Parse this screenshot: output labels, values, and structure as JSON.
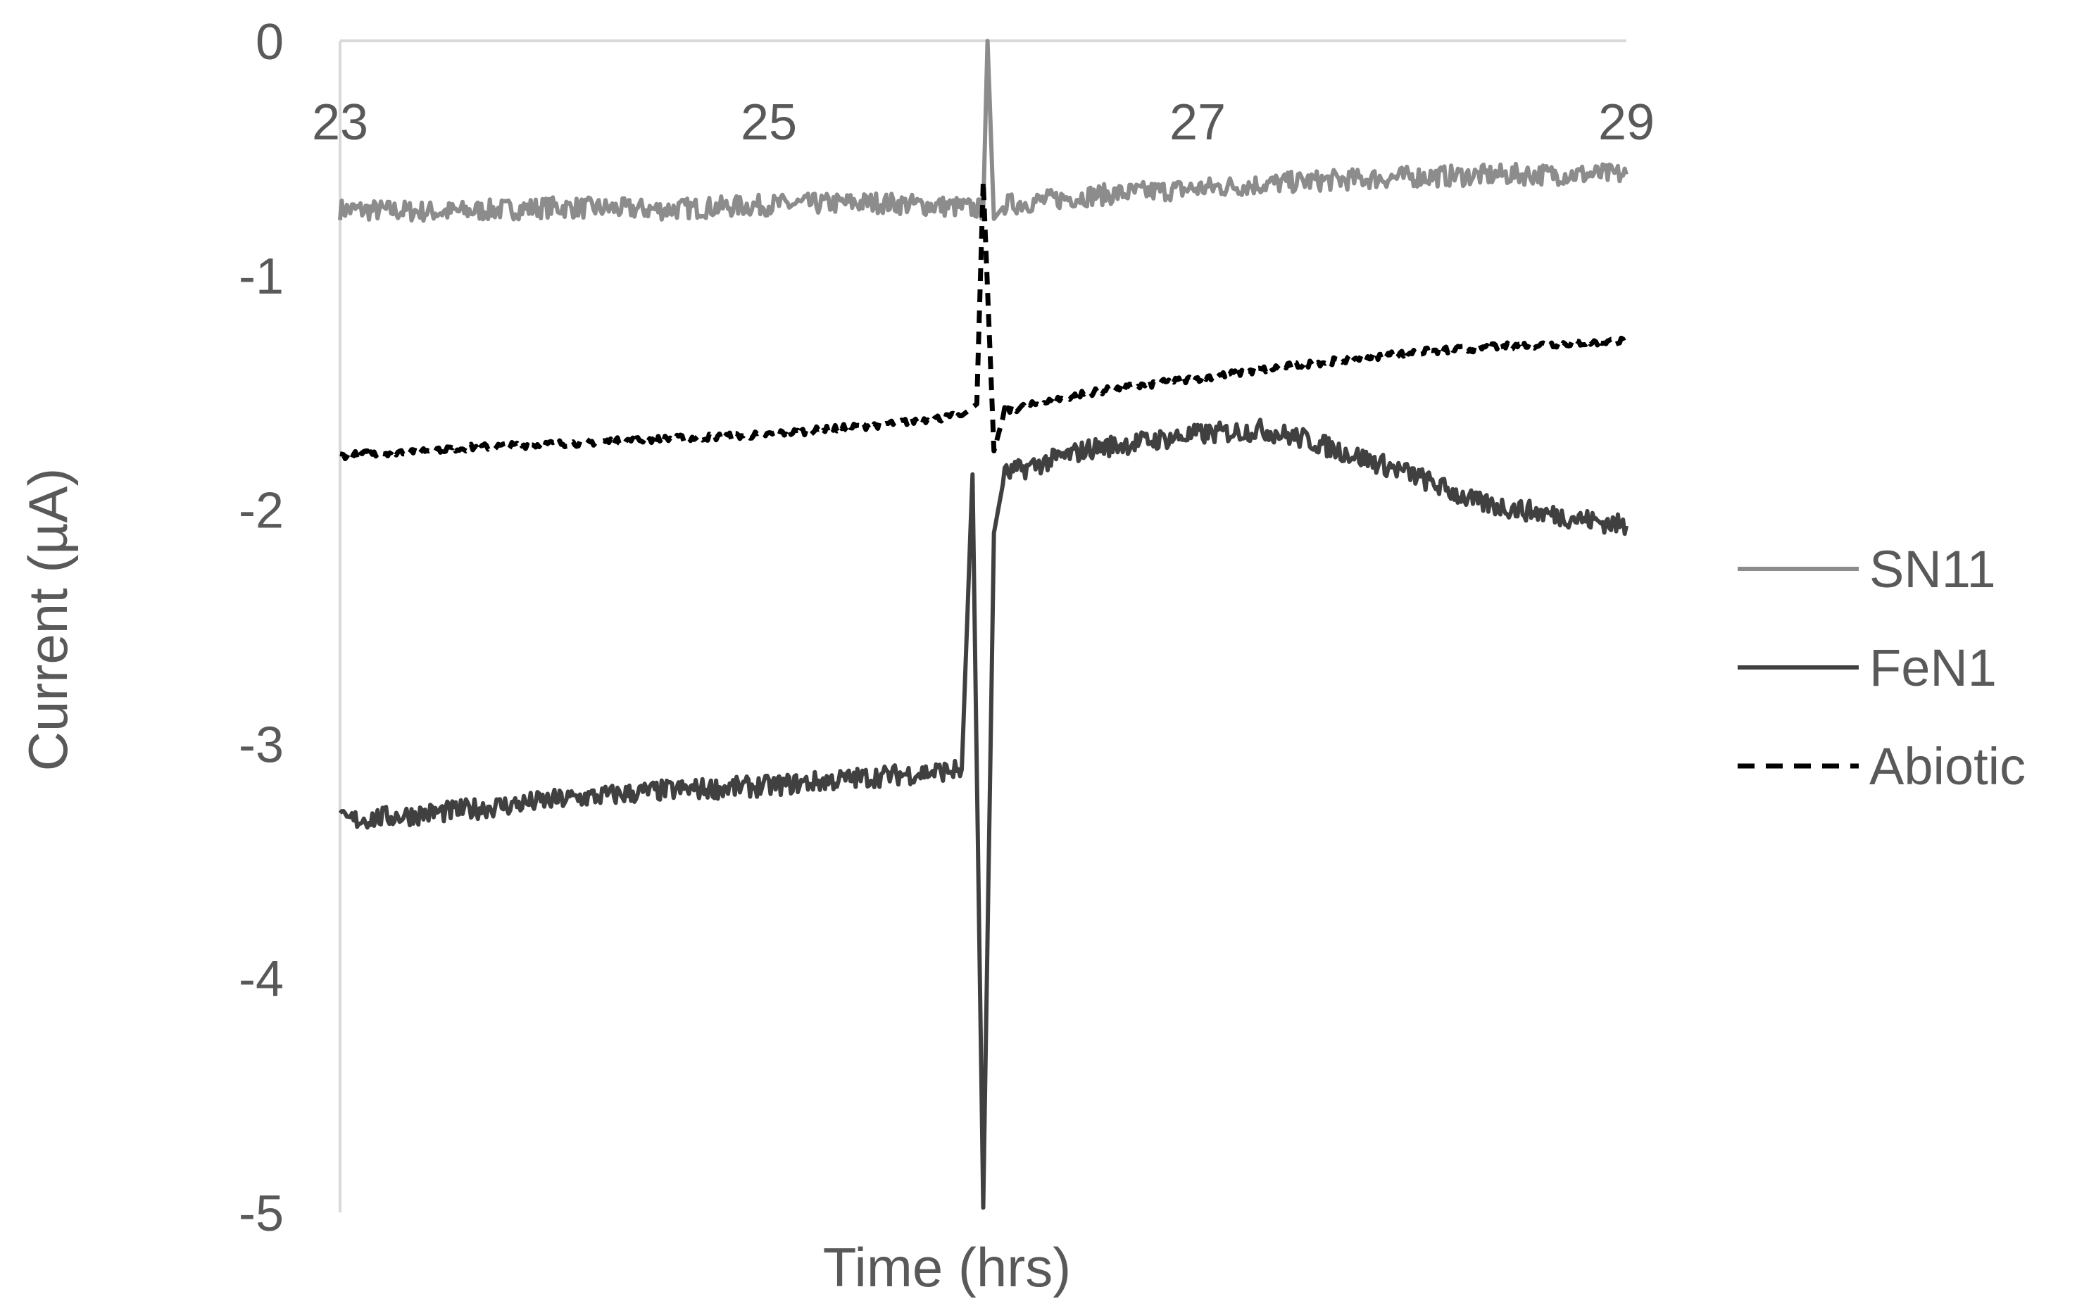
{
  "chart_data": {
    "type": "line",
    "title": "",
    "xlabel": "Time (hrs)",
    "ylabel": "Current (µA)",
    "xlim": [
      23,
      29
    ],
    "ylim": [
      -5,
      0
    ],
    "xticks": [
      23,
      25,
      27,
      29
    ],
    "yticks": [
      0,
      -1,
      -2,
      -3,
      -4,
      -5
    ],
    "grid": false,
    "legend": "right",
    "series": [
      {
        "name": "SN11",
        "color": "#8c8c8c",
        "style": "solid",
        "points": [
          [
            23.0,
            -0.72
          ],
          [
            23.5,
            -0.73
          ],
          [
            24.0,
            -0.71
          ],
          [
            24.5,
            -0.72
          ],
          [
            25.0,
            -0.7
          ],
          [
            25.5,
            -0.69
          ],
          [
            25.9,
            -0.71
          ],
          [
            26.0,
            -0.72
          ],
          [
            26.02,
            0.0
          ],
          [
            26.05,
            -0.76
          ],
          [
            26.1,
            -0.7
          ],
          [
            26.5,
            -0.66
          ],
          [
            27.0,
            -0.63
          ],
          [
            27.5,
            -0.6
          ],
          [
            28.0,
            -0.58
          ],
          [
            28.5,
            -0.57
          ],
          [
            29.0,
            -0.57
          ]
        ]
      },
      {
        "name": "FeN1",
        "color": "#404040",
        "style": "solid",
        "points": [
          [
            23.0,
            -3.33
          ],
          [
            23.5,
            -3.29
          ],
          [
            24.0,
            -3.24
          ],
          [
            24.5,
            -3.2
          ],
          [
            25.0,
            -3.18
          ],
          [
            25.5,
            -3.14
          ],
          [
            25.9,
            -3.11
          ],
          [
            25.95,
            -1.85
          ],
          [
            26.0,
            -4.98
          ],
          [
            26.05,
            -2.1
          ],
          [
            26.1,
            -1.85
          ],
          [
            26.5,
            -1.74
          ],
          [
            27.0,
            -1.68
          ],
          [
            27.3,
            -1.66
          ],
          [
            27.5,
            -1.7
          ],
          [
            28.0,
            -1.85
          ],
          [
            28.3,
            -1.97
          ],
          [
            28.5,
            -2.0
          ],
          [
            29.0,
            -2.07
          ]
        ]
      },
      {
        "name": "Abiotic",
        "color": "#000000",
        "style": "dashed",
        "points": [
          [
            23.0,
            -1.77
          ],
          [
            23.5,
            -1.74
          ],
          [
            24.0,
            -1.72
          ],
          [
            24.5,
            -1.7
          ],
          [
            25.0,
            -1.68
          ],
          [
            25.5,
            -1.64
          ],
          [
            25.9,
            -1.6
          ],
          [
            25.97,
            -1.55
          ],
          [
            26.0,
            -0.6
          ],
          [
            26.05,
            -1.75
          ],
          [
            26.1,
            -1.58
          ],
          [
            26.5,
            -1.5
          ],
          [
            27.0,
            -1.44
          ],
          [
            27.5,
            -1.38
          ],
          [
            28.0,
            -1.33
          ],
          [
            28.5,
            -1.3
          ],
          [
            29.0,
            -1.28
          ]
        ]
      }
    ]
  }
}
